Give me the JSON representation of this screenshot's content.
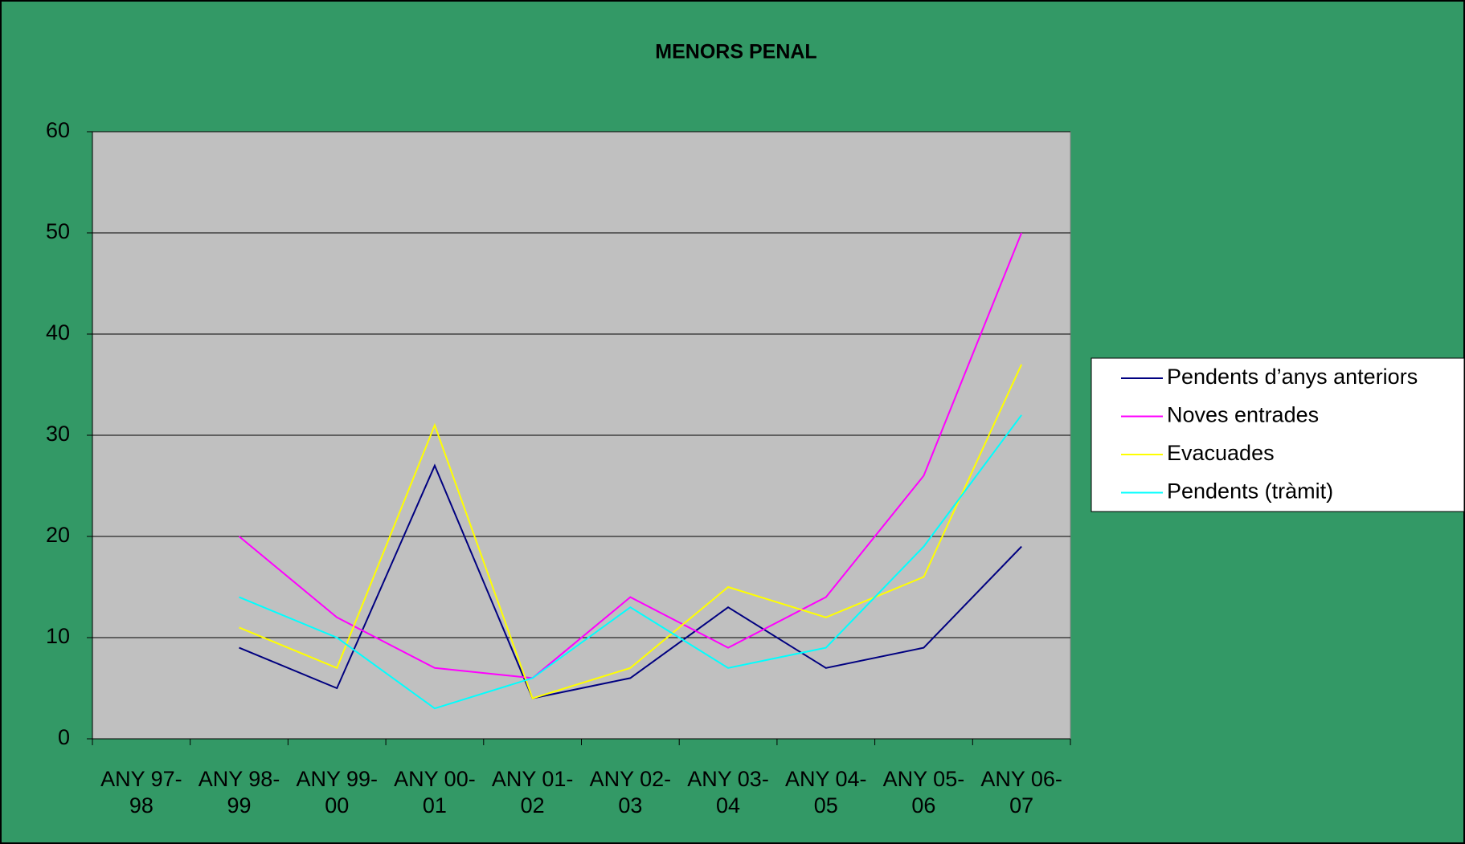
{
  "chart_data": {
    "type": "line",
    "title": "MENORS PENAL",
    "categories": [
      "ANY 97-98",
      "ANY 98-99",
      "ANY 99-00",
      "ANY 00-01",
      "ANY 01-02",
      "ANY 02-03",
      "ANY 03-04",
      "ANY 04-05",
      "ANY 05-06",
      "ANY 06-07"
    ],
    "series": [
      {
        "name": "Pendents d’anys anteriors",
        "color": "#000080",
        "values": [
          null,
          9,
          5,
          27,
          4,
          6,
          13,
          7,
          9,
          19
        ]
      },
      {
        "name": "Noves entrades",
        "color": "#ff00ff",
        "values": [
          null,
          20,
          12,
          7,
          6,
          14,
          9,
          14,
          26,
          50
        ]
      },
      {
        "name": "Evacuades",
        "color": "#ffff00",
        "values": [
          null,
          11,
          7,
          31,
          4,
          7,
          15,
          12,
          16,
          37
        ]
      },
      {
        "name": "Pendents (tràmit)",
        "color": "#00ffff",
        "values": [
          null,
          14,
          10,
          3,
          6,
          13,
          7,
          9,
          19,
          32
        ]
      }
    ],
    "ylim": [
      0,
      60
    ],
    "yticks": [
      0,
      10,
      20,
      30,
      40,
      50,
      60
    ],
    "grid": true,
    "legend": "right"
  }
}
